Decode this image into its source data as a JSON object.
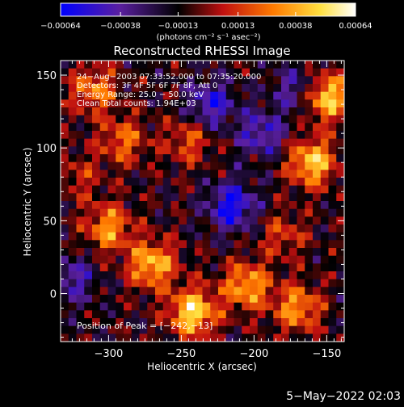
{
  "chart_data": {
    "type": "heatmap",
    "title": "Reconstructed RHESSI Image",
    "xlabel": "Heliocentric X (arcsec)",
    "ylabel": "Heliocentric Y (arcsec)",
    "xlim": [
      -333,
      -138
    ],
    "ylim": [
      -33,
      160
    ],
    "x_ticks": [
      -300,
      -250,
      -200,
      -150
    ],
    "y_ticks": [
      0,
      50,
      100,
      150
    ],
    "x_tick_labels": [
      "−300",
      "−250",
      "−200",
      "−150"
    ],
    "y_tick_labels": [
      "0",
      "50",
      "100",
      "150"
    ],
    "colorbar": {
      "tick_values": [
        -0.00064,
        -0.00038,
        -0.00013,
        0.00013,
        0.00038,
        0.00064
      ],
      "tick_labels": [
        "−0.00064",
        "−0.00038",
        "−0.00013",
        "0.00013",
        "0.00038",
        "0.00064"
      ],
      "range": [
        -0.00064,
        0.00064
      ],
      "unit_label": "(photons cm⁻² s⁻¹ asec⁻²)"
    },
    "annotations": [
      "24−Aug−2003 07:33:52.000 to 07:35:20.000",
      "Detectors: 3F 4F 5F 6F 7F 8F, Att 0",
      "Energy Range: 25.0 − 50.0 keV",
      "Clean     Total counts: 1.94E+03"
    ],
    "peak_label": "Position of Peak = [−242,−13]",
    "peak_position": [
      -242,
      -13
    ],
    "bright_regions": [
      {
        "x": -150,
        "y": 135,
        "intensity": 0.00062
      },
      {
        "x": -160,
        "y": 90,
        "intensity": 0.00058
      },
      {
        "x": -310,
        "y": 140,
        "intensity": 0.0004
      },
      {
        "x": -290,
        "y": 105,
        "intensity": 0.00035
      },
      {
        "x": -245,
        "y": 105,
        "intensity": 0.0003
      },
      {
        "x": -300,
        "y": 45,
        "intensity": 0.00045
      },
      {
        "x": -270,
        "y": 20,
        "intensity": 0.00055
      },
      {
        "x": -242,
        "y": -13,
        "intensity": 0.00064
      },
      {
        "x": -205,
        "y": 5,
        "intensity": 0.0005
      },
      {
        "x": -170,
        "y": -10,
        "intensity": 0.00045
      },
      {
        "x": -180,
        "y": 40,
        "intensity": 0.00025
      },
      {
        "x": -320,
        "y": 80,
        "intensity": 0.0002
      }
    ],
    "dark_regions": [
      {
        "x": -215,
        "y": 60,
        "intensity": -0.0005
      },
      {
        "x": -230,
        "y": 130,
        "intensity": -0.0004
      },
      {
        "x": -195,
        "y": 110,
        "intensity": -0.00035
      },
      {
        "x": -325,
        "y": 10,
        "intensity": -0.0003
      },
      {
        "x": -170,
        "y": 140,
        "intensity": -0.0003
      }
    ],
    "colors": {
      "colormap": [
        "#0000ff",
        "#5a1fa0",
        "#000000",
        "#c01010",
        "#ff7a00",
        "#ffe040",
        "#ffffff"
      ],
      "background": "#000000",
      "text": "#ffffff"
    }
  },
  "footer": {
    "timestamp": "5−May−2022 02:03"
  }
}
